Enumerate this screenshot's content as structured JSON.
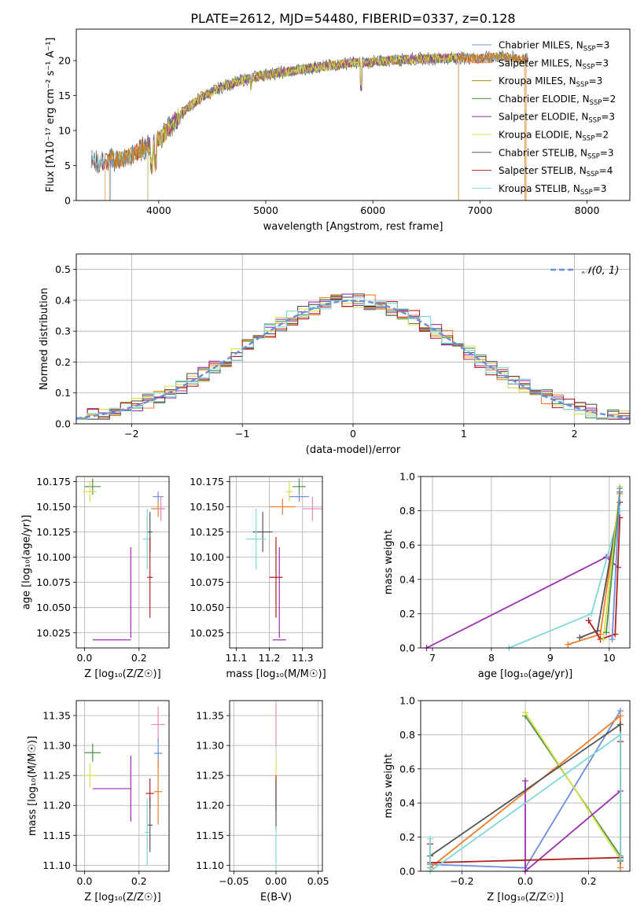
{
  "figure": {
    "title": "PLATE=2612, MJD=54480, FIBERID=0337, z=0.128"
  },
  "chart_data": [
    {
      "id": "spectrum",
      "type": "line",
      "title": "PLATE=2612, MJD=54480, FIBERID=0337, z=0.128",
      "xlabel": "wavelength [Angstrom, rest frame]",
      "ylabel": "Flux [fλ10⁻¹⁷ erg cm⁻² s⁻¹ A⁻¹]",
      "xlim": [
        3230,
        8400
      ],
      "ylim": [
        0,
        24.5
      ],
      "xticks": [
        4000,
        5000,
        6000,
        7000,
        8000
      ],
      "yticks": [
        0,
        5,
        10,
        15,
        20
      ],
      "grid": false,
      "legend": "right",
      "envelope": {
        "x": [
          3370,
          3450,
          3550,
          3650,
          3750,
          3850,
          3950,
          4050,
          4150,
          4250,
          4400,
          4600,
          4800,
          5000,
          5200,
          5400,
          5600,
          5800,
          6000,
          6200,
          6400,
          6600,
          6800,
          7000,
          7200,
          7400,
          7500
        ],
        "y": [
          5.6,
          5.4,
          5.8,
          5.9,
          6.4,
          7.4,
          8.2,
          9.5,
          11.2,
          13.0,
          14.8,
          16.3,
          17.3,
          18.0,
          18.4,
          18.9,
          19.3,
          19.7,
          19.8,
          20.1,
          20.2,
          20.3,
          20.4,
          20.3,
          20.6,
          20.2,
          20.0
        ]
      },
      "series": [
        {
          "name": "Chabrier MILES, N_SSP=3",
          "color": "#6b8fd8",
          "xrange": [
            3550,
            7350
          ]
        },
        {
          "name": "Salpeter MILES, N_SSP=3",
          "color": "#f07d2c",
          "xrange": [
            3500,
            7430
          ]
        },
        {
          "name": "Kroupa MILES, N_SSP=3",
          "color": "#b8860b",
          "xrange": [
            3540,
            7420
          ]
        },
        {
          "name": "Chabrier ELODIE, N_SSP=2",
          "color": "#4f8f4f",
          "xrange": [
            3900,
            6800
          ]
        },
        {
          "name": "Salpeter ELODIE, N_SSP=3",
          "color": "#9b30b0",
          "xrange": [
            3900,
            6800
          ]
        },
        {
          "name": "Kroupa ELODIE, N_SSP=2",
          "color": "#d8e04a",
          "xrange": [
            3900,
            6800
          ]
        },
        {
          "name": "Chabrier STELIB, N_SSP=3",
          "color": "#555555",
          "xrange": [
            3370,
            7450
          ]
        },
        {
          "name": "Salpeter STELIB, N_SSP=4",
          "color": "#b22222",
          "xrange": [
            3370,
            7450
          ]
        },
        {
          "name": "Kroupa STELIB, N_SSP=3",
          "color": "#7fd8d8",
          "xrange": [
            3370,
            7450
          ]
        }
      ]
    },
    {
      "id": "residuals",
      "type": "line",
      "xlabel": "(data-model)/error",
      "ylabel": "Normed distribution",
      "xlim": [
        -2.5,
        2.5
      ],
      "ylim": [
        0,
        0.55
      ],
      "xticks": [
        -2,
        -1,
        0,
        1,
        2
      ],
      "yticks": [
        0.0,
        0.1,
        0.2,
        0.3,
        0.4,
        0.5
      ],
      "grid": true,
      "legend": "top-right",
      "curve_label": "𝒩(0, 1)",
      "curve_color": "#6b8fd8",
      "hist_colors": [
        "#f07d2c",
        "#4f8f4f",
        "#9b30b0",
        "#d8e04a",
        "#555555",
        "#b22222",
        "#7fd8d8"
      ]
    },
    {
      "id": "age_vs_Z",
      "type": "scatter",
      "xlabel": "Z [log₁₀(Z/Z☉)]",
      "ylabel": "age  [log₁₀(age/yr)]",
      "xlim": [
        -0.03,
        0.31
      ],
      "ylim": [
        10.01,
        10.18
      ],
      "xticks": [
        0.0,
        0.2
      ],
      "yticks": [
        10.025,
        10.05,
        10.075,
        10.1,
        10.125,
        10.15,
        10.175
      ],
      "grid": true,
      "points": [
        {
          "x": 0.03,
          "y": 10.17,
          "xerr": 0.03,
          "yerr": 0.008,
          "color": "#4f8f4f"
        },
        {
          "x": 0.02,
          "y": 10.165,
          "xerr": 0.025,
          "yerr": 0.01,
          "color": "#d8e04a"
        },
        {
          "x": 0.27,
          "y": 10.16,
          "xerr": 0.02,
          "yerr": 0.005,
          "color": "#6b8fd8"
        },
        {
          "x": 0.27,
          "y": 10.148,
          "xerr": 0.025,
          "yerr": 0.008,
          "color": "#f07d2c"
        },
        {
          "x": 0.28,
          "y": 10.148,
          "xerr": 0.015,
          "yerr": 0.012,
          "color": "#e88ab8"
        },
        {
          "x": 0.24,
          "y": 10.125,
          "xerr": 0.01,
          "yerr": 0.02,
          "color": "#555555"
        },
        {
          "x": 0.23,
          "y": 10.118,
          "xerr": 0.015,
          "yerr": 0.03,
          "color": "#7fd8d8"
        },
        {
          "x": 0.17,
          "y": 10.065,
          "xerr": 0.0,
          "yerr": 0.045,
          "color": "#9b30b0"
        },
        {
          "x": 0.1,
          "y": 10.018,
          "xerr": 0.07,
          "yerr": 0.0,
          "color": "#9b30b0"
        },
        {
          "x": 0.24,
          "y": 10.08,
          "xerr": 0.01,
          "yerr": 0.04,
          "color": "#b22222"
        }
      ]
    },
    {
      "id": "age_vs_mass",
      "type": "scatter",
      "xlabel": "mass [log₁₀(M/M☉)]",
      "ylabel": "",
      "xlim": [
        11.08,
        11.36
      ],
      "ylim": [
        10.01,
        10.18
      ],
      "xticks": [
        11.1,
        11.2,
        11.3
      ],
      "yticks": [
        10.025,
        10.05,
        10.075,
        10.1,
        10.125,
        10.15,
        10.175
      ],
      "grid": true,
      "points": [
        {
          "x": 11.29,
          "y": 10.17,
          "xerr": 0.02,
          "yerr": 0.008,
          "color": "#4f8f4f"
        },
        {
          "x": 11.26,
          "y": 10.165,
          "xerr": 0.01,
          "yerr": 0.01,
          "color": "#d8e04a"
        },
        {
          "x": 11.29,
          "y": 10.16,
          "xerr": 0.03,
          "yerr": 0.005,
          "color": "#6b8fd8"
        },
        {
          "x": 11.24,
          "y": 10.15,
          "xerr": 0.04,
          "yerr": 0.008,
          "color": "#f07d2c"
        },
        {
          "x": 11.33,
          "y": 10.148,
          "xerr": 0.03,
          "yerr": 0.012,
          "color": "#e88ab8"
        },
        {
          "x": 11.18,
          "y": 10.125,
          "xerr": 0.03,
          "yerr": 0.02,
          "color": "#555555"
        },
        {
          "x": 11.16,
          "y": 10.118,
          "xerr": 0.03,
          "yerr": 0.03,
          "color": "#7fd8d8"
        },
        {
          "x": 11.23,
          "y": 10.065,
          "xerr": 0.0,
          "yerr": 0.045,
          "color": "#9b30b0"
        },
        {
          "x": 11.23,
          "y": 10.018,
          "xerr": 0.02,
          "yerr": 0.0,
          "color": "#9b30b0"
        },
        {
          "x": 11.22,
          "y": 10.08,
          "xerr": 0.02,
          "yerr": 0.04,
          "color": "#b22222"
        }
      ]
    },
    {
      "id": "massweight_vs_age",
      "type": "line",
      "xlabel": "age  [log₁₀(age/yr)]",
      "ylabel": "mass weight",
      "xlim": [
        6.8,
        10.35
      ],
      "ylim": [
        0,
        1.0
      ],
      "xticks": [
        7,
        8,
        9,
        10
      ],
      "yticks": [
        0.0,
        0.2,
        0.4,
        0.6,
        0.8,
        1.0
      ],
      "grid": true,
      "series": [
        {
          "color": "#9b30b0",
          "x": [
            6.9,
            9.95,
            10.15
          ],
          "y": [
            0.0,
            0.53,
            0.47
          ]
        },
        {
          "color": "#7fd8d8",
          "x": [
            8.3,
            9.7,
            10.18
          ],
          "y": [
            0.0,
            0.2,
            0.8
          ]
        },
        {
          "color": "#f07d2c",
          "x": [
            9.3,
            9.85,
            10.18
          ],
          "y": [
            0.02,
            0.08,
            0.9
          ]
        },
        {
          "color": "#555555",
          "x": [
            9.5,
            9.8,
            10.18
          ],
          "y": [
            0.06,
            0.1,
            0.85
          ]
        },
        {
          "color": "#b22222",
          "x": [
            9.65,
            9.85,
            10.1,
            10.18
          ],
          "y": [
            0.16,
            0.05,
            0.08,
            0.76
          ]
        },
        {
          "color": "#d8e04a",
          "x": [
            9.9,
            10.18
          ],
          "y": [
            0.05,
            0.94
          ]
        },
        {
          "color": "#4f8f4f",
          "x": [
            9.95,
            10.18
          ],
          "y": [
            0.09,
            0.91
          ]
        },
        {
          "color": "#6b8fd8",
          "x": [
            10.05,
            10.18
          ],
          "y": [
            0.05,
            0.93
          ]
        }
      ]
    },
    {
      "id": "mass_vs_Z",
      "type": "scatter",
      "xlabel": "Z [log₁₀(Z/Z☉)]",
      "ylabel": "mass [log₁₀(M/M☉)]",
      "xlim": [
        -0.03,
        0.31
      ],
      "ylim": [
        11.09,
        11.375
      ],
      "xticks": [
        0.0,
        0.2
      ],
      "yticks": [
        11.1,
        11.15,
        11.2,
        11.25,
        11.3,
        11.35
      ],
      "grid": true,
      "points": [
        {
          "x": 0.03,
          "y": 11.288,
          "xerr": 0.03,
          "yerr": 0.015,
          "color": "#4f8f4f"
        },
        {
          "x": 0.02,
          "y": 11.25,
          "xerr": 0.025,
          "yerr": 0.02,
          "color": "#d8e04a"
        },
        {
          "x": 0.1,
          "y": 11.228,
          "xerr": 0.07,
          "yerr": 0.0,
          "color": "#9b30b0"
        },
        {
          "x": 0.17,
          "y": 11.228,
          "xerr": 0.0,
          "yerr": 0.055,
          "color": "#9b30b0"
        },
        {
          "x": 0.27,
          "y": 11.335,
          "xerr": 0.025,
          "yerr": 0.03,
          "color": "#e88ab8"
        },
        {
          "x": 0.27,
          "y": 11.287,
          "xerr": 0.015,
          "yerr": 0.025,
          "color": "#6b8fd8"
        },
        {
          "x": 0.27,
          "y": 11.223,
          "xerr": 0.015,
          "yerr": 0.055,
          "color": "#f07d2c"
        },
        {
          "x": 0.24,
          "y": 11.22,
          "xerr": 0.015,
          "yerr": 0.025,
          "color": "#b22222"
        },
        {
          "x": 0.24,
          "y": 11.167,
          "xerr": 0.01,
          "yerr": 0.045,
          "color": "#555555"
        },
        {
          "x": 0.23,
          "y": 11.155,
          "xerr": 0.01,
          "yerr": 0.055,
          "color": "#7fd8d8"
        }
      ]
    },
    {
      "id": "mass_vs_ebv",
      "type": "scatter",
      "xlabel": "E(B-V)",
      "ylabel": "",
      "xlim": [
        -0.055,
        0.055
      ],
      "ylim": [
        11.09,
        11.375
      ],
      "xticks": [
        -0.05,
        0.0,
        0.05
      ],
      "yticks": [
        11.1,
        11.15,
        11.2,
        11.25,
        11.3,
        11.35
      ],
      "grid": true,
      "points": [
        {
          "x": 0.0,
          "y": 11.335,
          "xerr": 0.0,
          "yerr": 0.035,
          "color": "#e88ab8"
        },
        {
          "x": 0.0,
          "y": 11.26,
          "xerr": 0.0,
          "yerr": 0.02,
          "color": "#d8e04a"
        },
        {
          "x": 0.0,
          "y": 11.22,
          "xerr": 0.0,
          "yerr": 0.03,
          "color": "#b22222"
        },
        {
          "x": 0.0,
          "y": 11.2,
          "xerr": 0.0,
          "yerr": 0.04,
          "color": "#555555"
        },
        {
          "x": 0.0,
          "y": 11.13,
          "xerr": 0.0,
          "yerr": 0.035,
          "color": "#7fd8d8"
        }
      ]
    },
    {
      "id": "massweight_vs_Z",
      "type": "line",
      "xlabel": "Z [log₁₀(Z/Z☉)]",
      "ylabel": "mass weight",
      "xlim": [
        -0.33,
        0.33
      ],
      "ylim": [
        0,
        1.0
      ],
      "xticks": [
        -0.2,
        0.0,
        0.2
      ],
      "yticks": [
        0.0,
        0.2,
        0.4,
        0.6,
        0.8,
        1.0
      ],
      "grid": true,
      "series": [
        {
          "color": "#6b8fd8",
          "x": [
            -0.3,
            0.0,
            0.3
          ],
          "y": [
            0.04,
            0.02,
            0.94
          ]
        },
        {
          "color": "#f07d2c",
          "x": [
            -0.3,
            0.3,
            0.3
          ],
          "y": [
            0.02,
            0.91,
            0.02
          ]
        },
        {
          "color": "#4f8f4f",
          "x": [
            0.0,
            0.3
          ],
          "y": [
            0.91,
            0.09
          ]
        },
        {
          "color": "#d8e04a",
          "x": [
            0.0,
            0.3
          ],
          "y": [
            0.93,
            0.07
          ]
        },
        {
          "color": "#9b30b0",
          "x": [
            0.0,
            0.0,
            0.3
          ],
          "y": [
            0.53,
            0.0,
            0.47
          ]
        },
        {
          "color": "#555555",
          "x": [
            -0.3,
            0.3,
            0.3
          ],
          "y": [
            0.09,
            0.86,
            0.06
          ]
        },
        {
          "color": "#b22222",
          "x": [
            -0.3,
            -0.3,
            0.3,
            0.3
          ],
          "y": [
            0.16,
            0.05,
            0.08,
            0.76
          ]
        },
        {
          "color": "#7fd8d8",
          "x": [
            -0.3,
            -0.3,
            0.3,
            0.3
          ],
          "y": [
            0.19,
            0.0,
            0.8,
            0.07
          ]
        }
      ]
    }
  ]
}
